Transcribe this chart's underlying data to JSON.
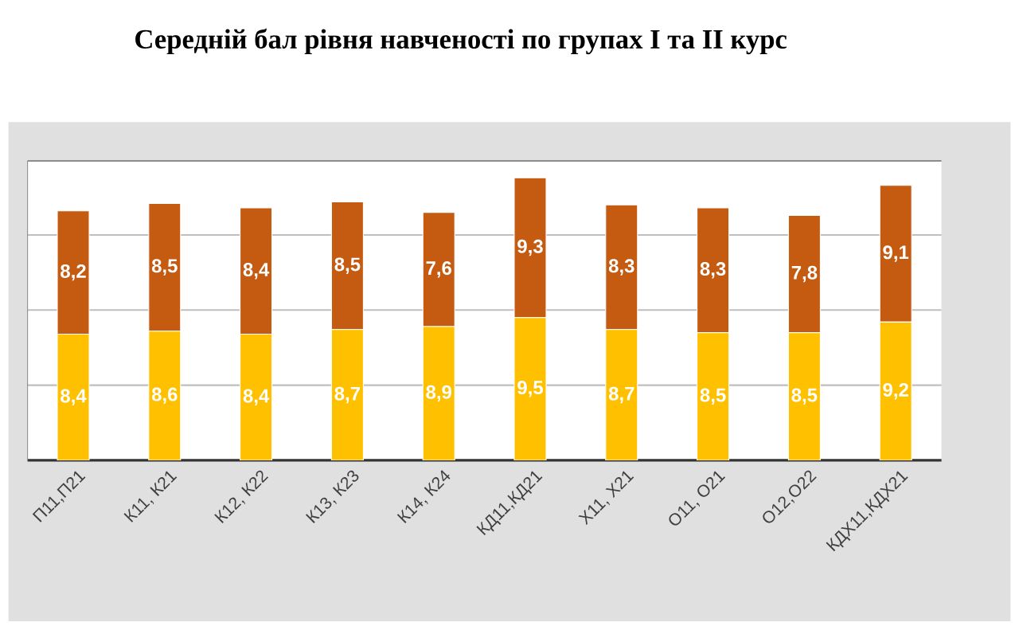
{
  "chart_data": {
    "type": "bar",
    "stacked": true,
    "title": "Середній бал рівня навченості по групах І та ІІ курс",
    "categories": [
      "П11,П21",
      "К11, К21",
      "К12, К22",
      "К13, К23",
      "К14, К24",
      "КД11,КД21",
      "Х11, Х21",
      "О11, О21",
      "О12,О22",
      "КДХ11,КДХ21"
    ],
    "series": [
      {
        "color": "#ffc000",
        "values": [
          8.4,
          8.6,
          8.4,
          8.7,
          8.9,
          9.5,
          8.7,
          8.5,
          8.5,
          9.2
        ],
        "value_labels": [
          "8,4",
          "8,6",
          "8,4",
          "8,7",
          "8,9",
          "9,5",
          "8,7",
          "8,5",
          "8,5",
          "9,2"
        ]
      },
      {
        "color": "#c55a11",
        "values": [
          8.2,
          8.5,
          8.4,
          8.5,
          7.6,
          9.3,
          8.3,
          8.3,
          7.8,
          9.1
        ],
        "value_labels": [
          "8,2",
          "8,5",
          "8,4",
          "8,5",
          "7,6",
          "9,3",
          "8,3",
          "8,3",
          "7,8",
          "9,1"
        ]
      }
    ],
    "grid": "y",
    "tick_labels": "x"
  }
}
